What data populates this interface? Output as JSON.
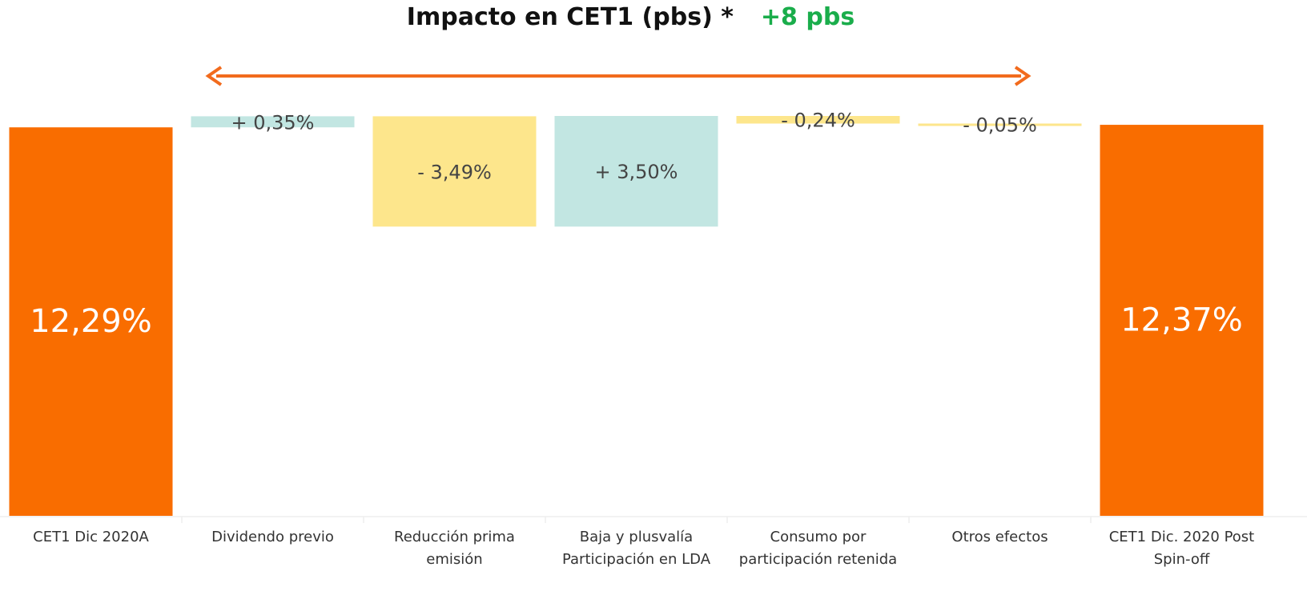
{
  "chart_data": {
    "type": "waterfall",
    "title": "Impacto en CET1 (pbs) *",
    "annotation": "+8 pbs",
    "categories": [
      "CET1 Dic 2020A",
      "Dividendo previo",
      "Reducción prima emisión",
      "Baja y plusvalía Participación en LDA",
      "Consumo por participación retenida",
      "Otros efectos",
      "CET1 Dic. 2020 Post Spin-off"
    ],
    "measure": [
      "absolute",
      "relative",
      "relative",
      "relative",
      "relative",
      "relative",
      "absolute"
    ],
    "values": [
      12.29,
      0.35,
      -3.49,
      3.5,
      -0.24,
      -0.05,
      12.37
    ],
    "value_labels": [
      "12,29%",
      "+ 0,35%",
      "- 3,49%",
      "+ 3,50%",
      "- 0,24%",
      "- 0,05%",
      "12,37%"
    ],
    "colors": {
      "total": "#f96d00",
      "increase": "#c2e6e2",
      "decrease": "#fde68c"
    },
    "annotation_color": "#1aad4b"
  }
}
